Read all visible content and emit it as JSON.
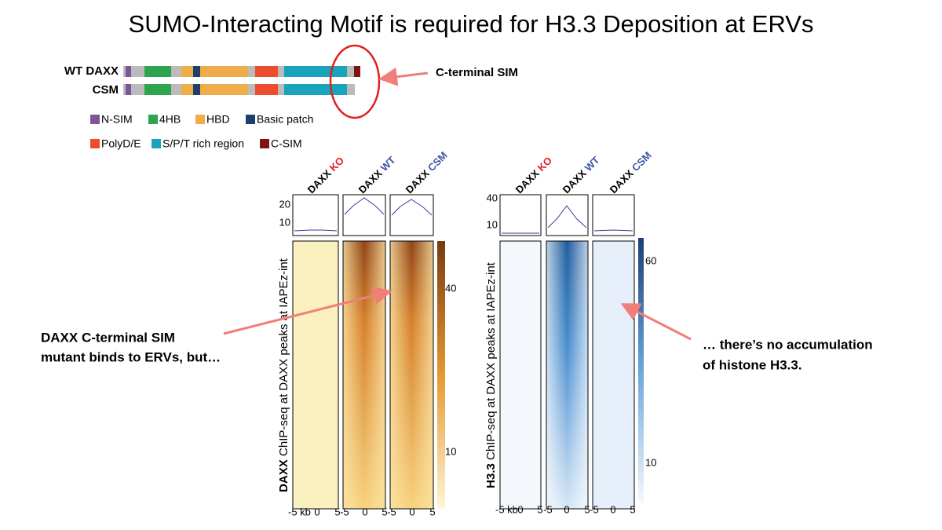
{
  "title": "SUMO-Interacting Motif is required for H3.3 Deposition at ERVs",
  "protein_diagram": {
    "rows": [
      "WT DAXX",
      "CSM"
    ],
    "callout": "C-terminal SIM",
    "legend": [
      "N-SIM",
      "4HB",
      "HBD",
      "Basic patch",
      "PolyD/E",
      "S/P/T rich region",
      "C-SIM"
    ]
  },
  "panels": [
    {
      "columns": [
        {
          "protein": "DAXX",
          "condition": "KO"
        },
        {
          "protein": "DAXX",
          "condition": "WT"
        },
        {
          "protein": "DAXX",
          "condition": "CSM"
        }
      ],
      "profile_ticks": [
        "20",
        "10"
      ],
      "colorbar_ticks": [
        "40",
        "10"
      ],
      "ylabel_bold": "DAXX",
      "ylabel": "ChIP-seq at DAXX peaks at IAPEz-int",
      "xticks": [
        "-5 kb",
        "0",
        "5",
        "-5",
        "0",
        "5",
        "-5",
        "0",
        "5"
      ]
    },
    {
      "columns": [
        {
          "protein": "DAXX",
          "condition": "KO"
        },
        {
          "protein": "DAXX",
          "condition": "WT"
        },
        {
          "protein": "DAXX",
          "condition": "CSM"
        }
      ],
      "profile_ticks": [
        "40",
        "10"
      ],
      "colorbar_ticks": [
        "60",
        "10"
      ],
      "ylabel_bold": "H3.3",
      "ylabel": "ChIP-seq at DAXX peaks at IAPEz-int",
      "xticks": [
        "-5 kb",
        "0",
        "5",
        "-5",
        "0",
        "5",
        "-5",
        "0",
        "5"
      ]
    }
  ],
  "annotations": {
    "left": [
      "DAXX C-terminal SIM",
      "mutant binds to ERVs, but…"
    ],
    "right": [
      "… there’s no accumulation",
      "of histone H3.3."
    ]
  }
}
